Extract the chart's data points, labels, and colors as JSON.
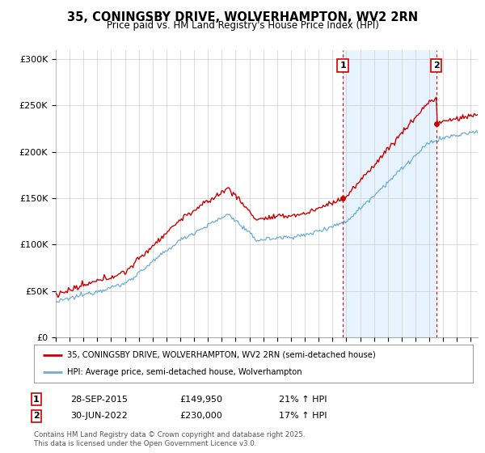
{
  "title_line1": "35, CONINGSBY DRIVE, WOLVERHAMPTON, WV2 2RN",
  "title_line2": "Price paid vs. HM Land Registry's House Price Index (HPI)",
  "legend_label1": "35, CONINGSBY DRIVE, WOLVERHAMPTON, WV2 2RN (semi-detached house)",
  "legend_label2": "HPI: Average price, semi-detached house, Wolverhampton",
  "footnote": "Contains HM Land Registry data © Crown copyright and database right 2025.\nThis data is licensed under the Open Government Licence v3.0.",
  "annotation1_label": "1",
  "annotation1_date": "28-SEP-2015",
  "annotation1_price": "£149,950",
  "annotation1_hpi": "21% ↑ HPI",
  "annotation2_label": "2",
  "annotation2_date": "30-JUN-2022",
  "annotation2_price": "£230,000",
  "annotation2_hpi": "17% ↑ HPI",
  "sale1_year": 2015.75,
  "sale1_value": 149950,
  "sale2_year": 2022.5,
  "sale2_value": 230000,
  "hpi_color": "#6baed6",
  "price_color": "#cc0000",
  "annotation_color": "#cc0000",
  "shade_color": "#ddeeff",
  "background_color": "#ffffff",
  "plot_bg_color": "#ffffff",
  "grid_color": "#cccccc",
  "ylim": [
    0,
    310000
  ],
  "yticks": [
    0,
    50000,
    100000,
    150000,
    200000,
    250000,
    300000
  ],
  "ytick_labels": [
    "£0",
    "£50K",
    "£100K",
    "£150K",
    "£200K",
    "£250K",
    "£300K"
  ],
  "xstart": 1995,
  "xend": 2025.5
}
